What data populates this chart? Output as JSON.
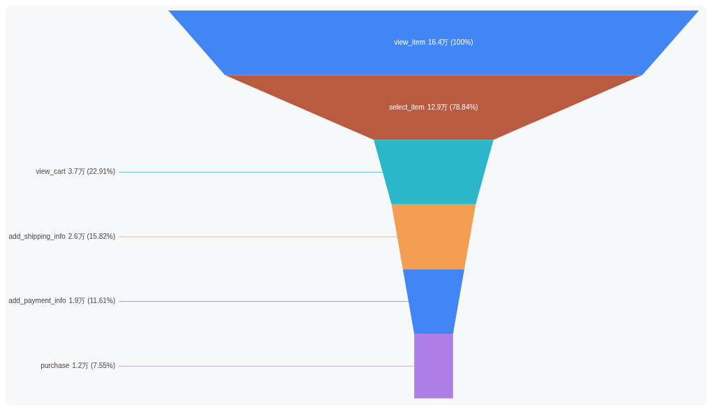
{
  "chart_data": {
    "type": "other",
    "categories": [
      "view_item",
      "select_item",
      "view_cart",
      "add_shipping_info",
      "add_payment_info",
      "purchase"
    ],
    "values": [
      16.4,
      12.9,
      3.7,
      2.6,
      1.9,
      1.2
    ],
    "value_labels": [
      "16.4万 (100%)",
      "12.9万 (78.84%)",
      "3.7万 (22.91%)",
      "2.6万 (15.82%)",
      "1.9万 (11.61%)",
      "1.2万 (7.55%)"
    ],
    "colors": [
      "#4285f4",
      "#b95b40",
      "#2bb7c9",
      "#f39e51",
      "#4285f4",
      "#ae7fe4"
    ]
  }
}
